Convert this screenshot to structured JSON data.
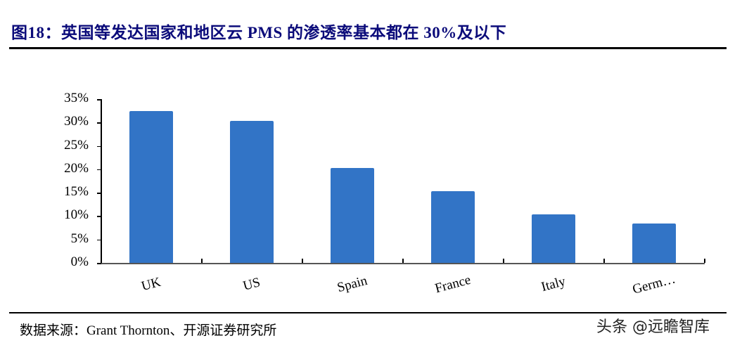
{
  "header": {
    "title": "图18：英国等发达国家和地区云 PMS 的渗透率基本都在 30%及以下"
  },
  "chart_data": {
    "type": "bar",
    "title": "图18：英国等发达国家和地区云 PMS 的渗透率基本都在 30%及以下",
    "xlabel": "",
    "ylabel": "",
    "categories": [
      "UK",
      "US",
      "Spain",
      "France",
      "Italy",
      "Germ…"
    ],
    "values": [
      32.5,
      30.3,
      20.3,
      15.3,
      10.4,
      8.4
    ],
    "unit": "%",
    "ylim": [
      0,
      35
    ],
    "yticks": [
      "0%",
      "5%",
      "10%",
      "15%",
      "20%",
      "25%",
      "30%",
      "35%"
    ],
    "grid": false,
    "legend": null,
    "bar_color": "#3274c6"
  },
  "footer": {
    "source": "数据来源：Grant Thornton、开源证券研究所",
    "watermark": "头条 @远瞻智库"
  }
}
